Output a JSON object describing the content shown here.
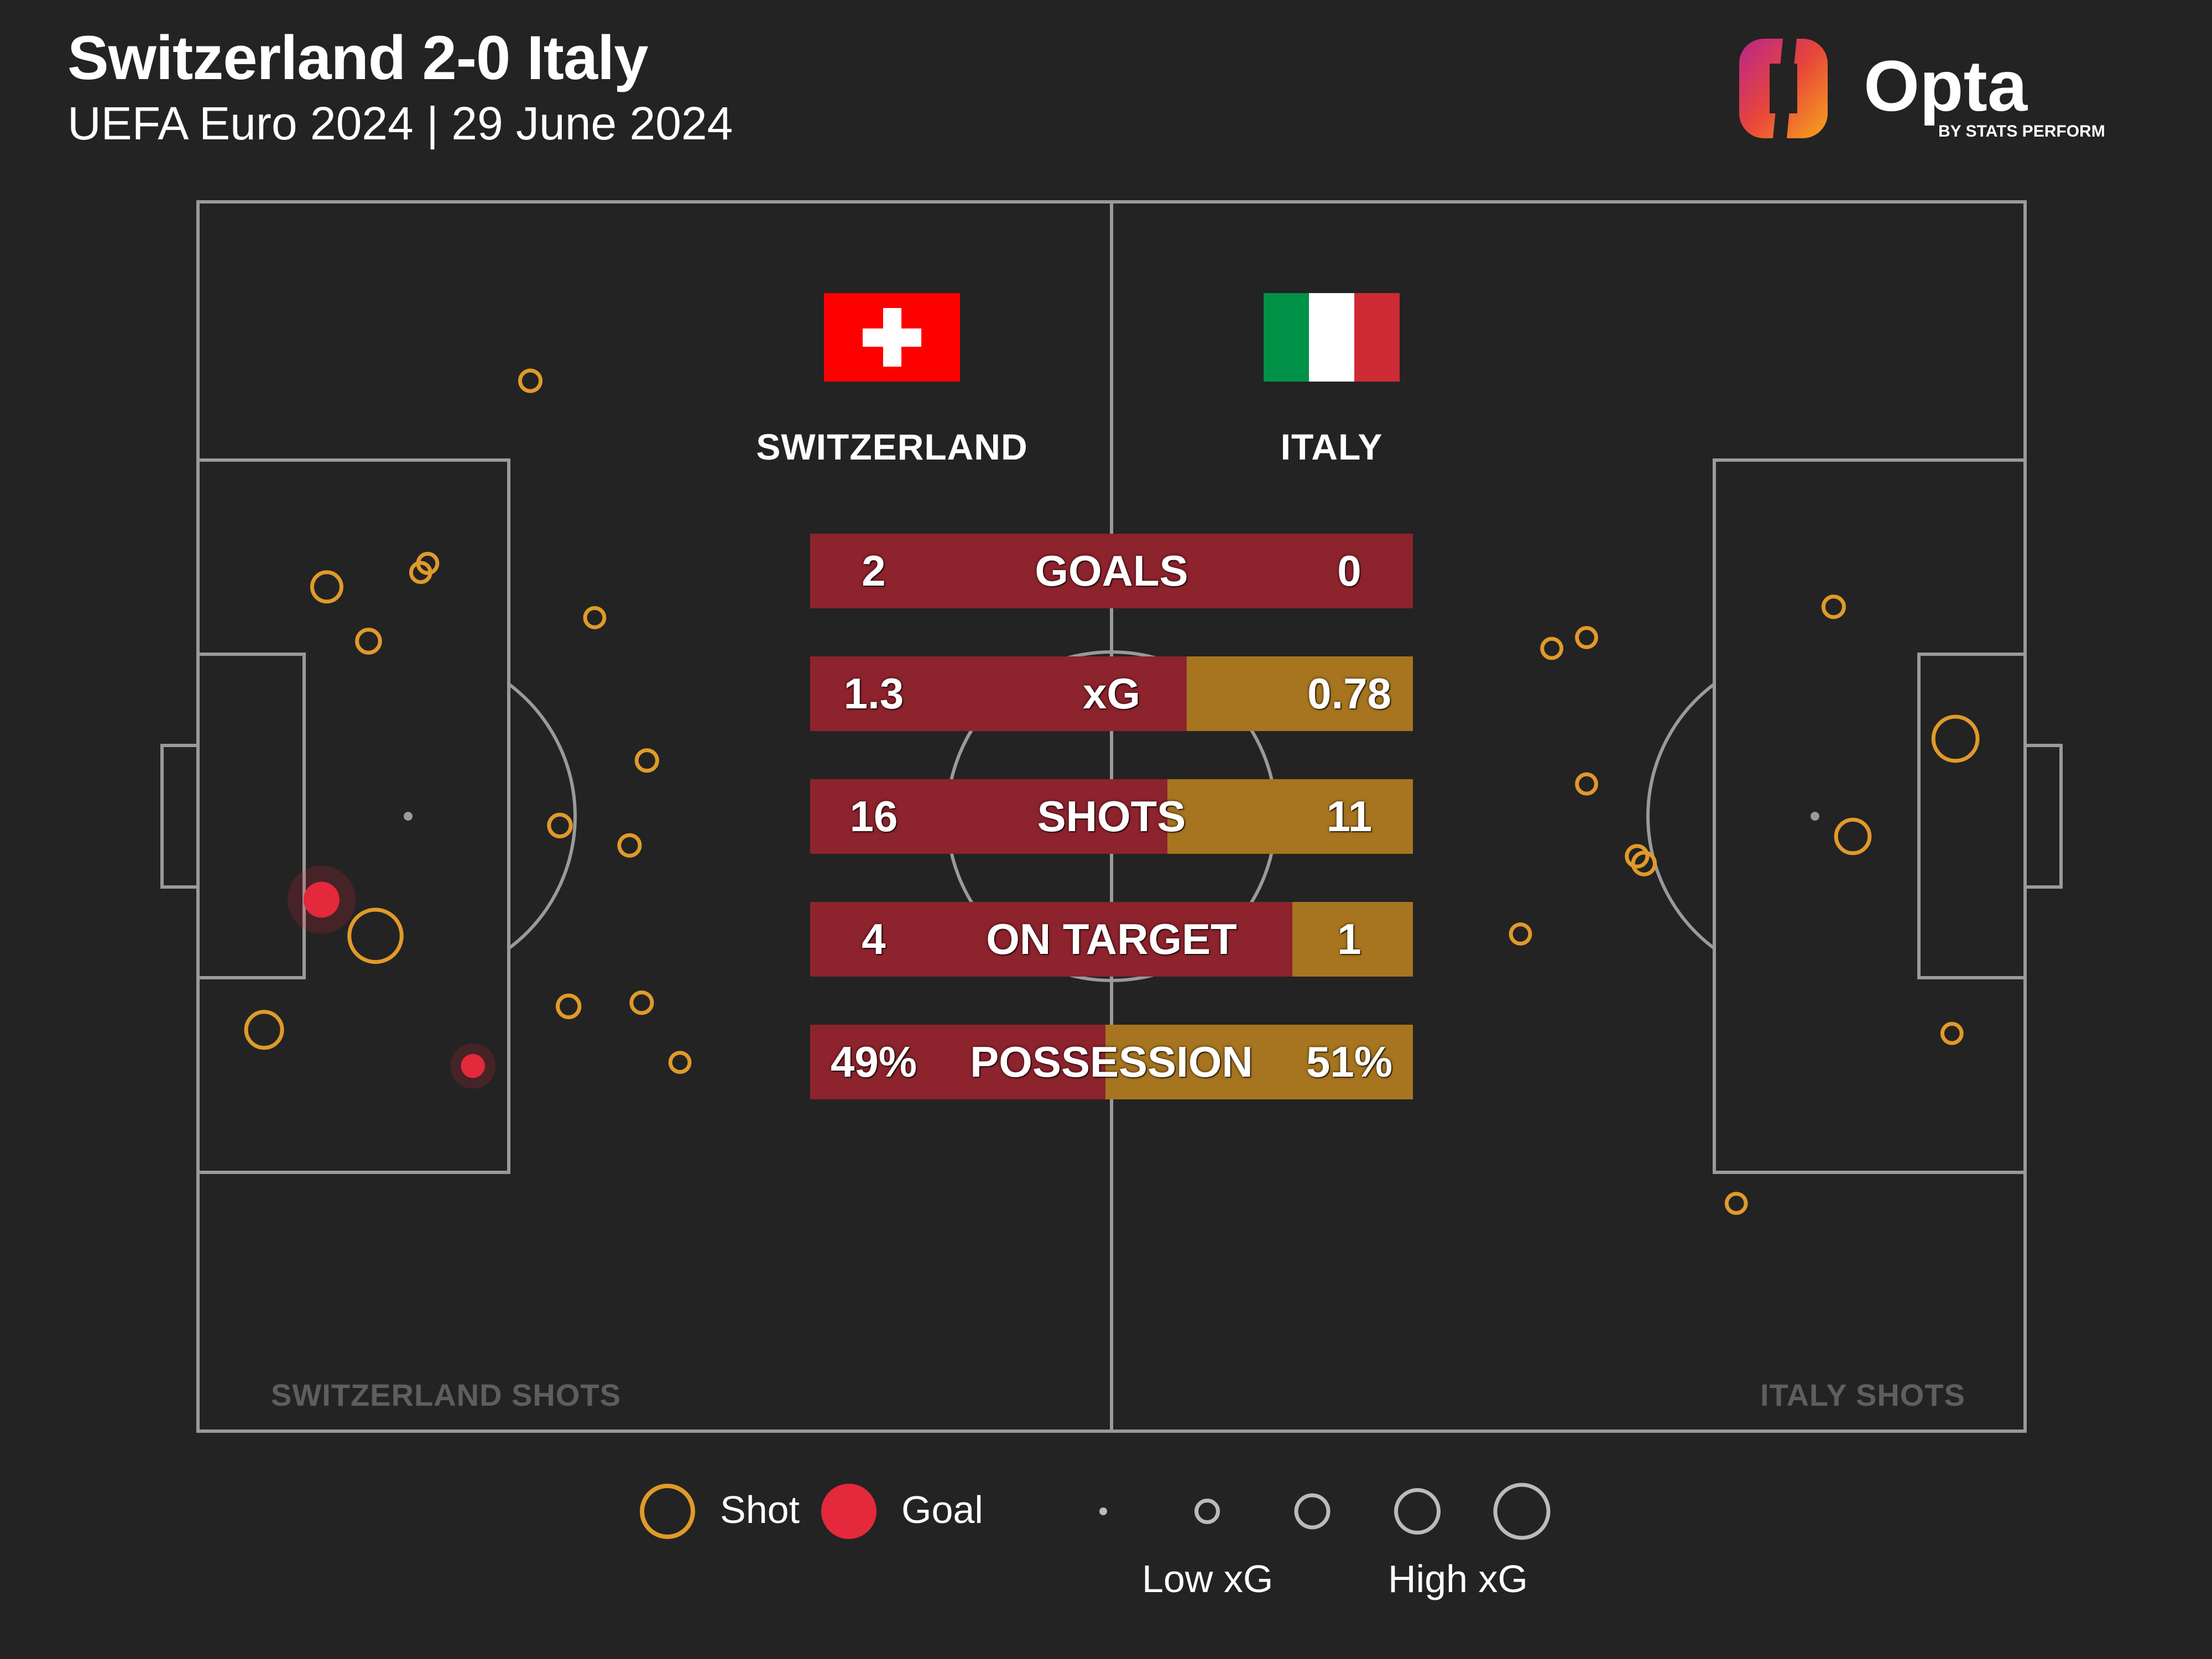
{
  "header": {
    "title": "Switzerland 2-0 Italy",
    "subtitle": "UEFA Euro 2024 | 29 June 2024"
  },
  "logo": {
    "name": "Opta",
    "byline": "BY STATS PERFORM"
  },
  "teams": {
    "home": {
      "name": "SWITZERLAND",
      "shots_label": "SWITZERLAND SHOTS",
      "flag": "switzerland-flag"
    },
    "away": {
      "name": "ITALY",
      "shots_label": "ITALY SHOTS",
      "flag": "italy-flag"
    }
  },
  "colors": {
    "background": "#232323",
    "pitch_lines": "#9a9a9a",
    "home_bar": "#8d232d",
    "away_bar": "#a7751f",
    "shot": "#e09a2a",
    "goal": "#e3293b"
  },
  "chart_data": {
    "type": "scatter",
    "stats": [
      {
        "label": "GOALS",
        "home": 2,
        "away": 0,
        "home_display": "2",
        "away_display": "0"
      },
      {
        "label": "xG",
        "home": 1.3,
        "away": 0.78,
        "home_display": "1.3",
        "away_display": "0.78"
      },
      {
        "label": "SHOTS",
        "home": 16,
        "away": 11,
        "home_display": "16",
        "away_display": "11"
      },
      {
        "label": "ON TARGET",
        "home": 4,
        "away": 1,
        "home_display": "4",
        "away_display": "1"
      },
      {
        "label": "POSSESSION",
        "home": 49,
        "away": 51,
        "home_display": "49%",
        "away_display": "51%"
      }
    ],
    "pitch": {
      "length_m": 105,
      "width_m": 68
    },
    "home_shots": [
      {
        "x": 19.1,
        "y": 9.9,
        "xg": 0.025,
        "outcome": "shot"
      },
      {
        "x": 13.2,
        "y": 20.0,
        "xg": 0.02,
        "outcome": "shot"
      },
      {
        "x": 12.8,
        "y": 20.5,
        "xg": 0.02,
        "outcome": "shot"
      },
      {
        "x": 7.4,
        "y": 21.3,
        "xg": 0.07,
        "outcome": "shot"
      },
      {
        "x": 22.8,
        "y": 23.0,
        "xg": 0.02,
        "outcome": "shot"
      },
      {
        "x": 9.8,
        "y": 24.3,
        "xg": 0.035,
        "outcome": "shot"
      },
      {
        "x": 25.8,
        "y": 30.9,
        "xg": 0.025,
        "outcome": "shot"
      },
      {
        "x": 20.8,
        "y": 34.5,
        "xg": 0.03,
        "outcome": "shot"
      },
      {
        "x": 24.8,
        "y": 35.6,
        "xg": 0.025,
        "outcome": "shot"
      },
      {
        "x": 7.1,
        "y": 38.6,
        "xg": 0.12,
        "outcome": "goal"
      },
      {
        "x": 10.2,
        "y": 40.6,
        "xg": 0.3,
        "outcome": "shot"
      },
      {
        "x": 21.3,
        "y": 44.5,
        "xg": 0.03,
        "outcome": "shot"
      },
      {
        "x": 25.5,
        "y": 44.3,
        "xg": 0.025,
        "outcome": "shot"
      },
      {
        "x": 3.8,
        "y": 45.8,
        "xg": 0.12,
        "outcome": "shot"
      },
      {
        "x": 15.8,
        "y": 47.8,
        "xg": 0.04,
        "outcome": "goal"
      },
      {
        "x": 27.7,
        "y": 47.6,
        "xg": 0.02,
        "outcome": "shot"
      }
    ],
    "away_shots": [
      {
        "x": 94.0,
        "y": 22.4,
        "xg": 0.025,
        "outcome": "shot"
      },
      {
        "x": 79.8,
        "y": 24.1,
        "xg": 0.02,
        "outcome": "shot"
      },
      {
        "x": 77.8,
        "y": 24.7,
        "xg": 0.02,
        "outcome": "shot"
      },
      {
        "x": 101.0,
        "y": 29.7,
        "xg": 0.2,
        "outcome": "shot"
      },
      {
        "x": 79.8,
        "y": 32.2,
        "xg": 0.02,
        "outcome": "shot"
      },
      {
        "x": 95.1,
        "y": 35.1,
        "xg": 0.1,
        "outcome": "shot"
      },
      {
        "x": 82.7,
        "y": 36.2,
        "xg": 0.025,
        "outcome": "shot"
      },
      {
        "x": 83.1,
        "y": 36.6,
        "xg": 0.03,
        "outcome": "shot"
      },
      {
        "x": 76.0,
        "y": 40.5,
        "xg": 0.02,
        "outcome": "shot"
      },
      {
        "x": 100.8,
        "y": 46.0,
        "xg": 0.02,
        "outcome": "shot"
      },
      {
        "x": 88.4,
        "y": 55.4,
        "xg": 0.02,
        "outcome": "shot"
      }
    ]
  },
  "legend": {
    "shot_label": "Shot",
    "goal_label": "Goal",
    "low_label": "Low xG",
    "high_label": "High xG",
    "size_scale": [
      0.01,
      0.1,
      0.2,
      0.35,
      0.5
    ]
  }
}
